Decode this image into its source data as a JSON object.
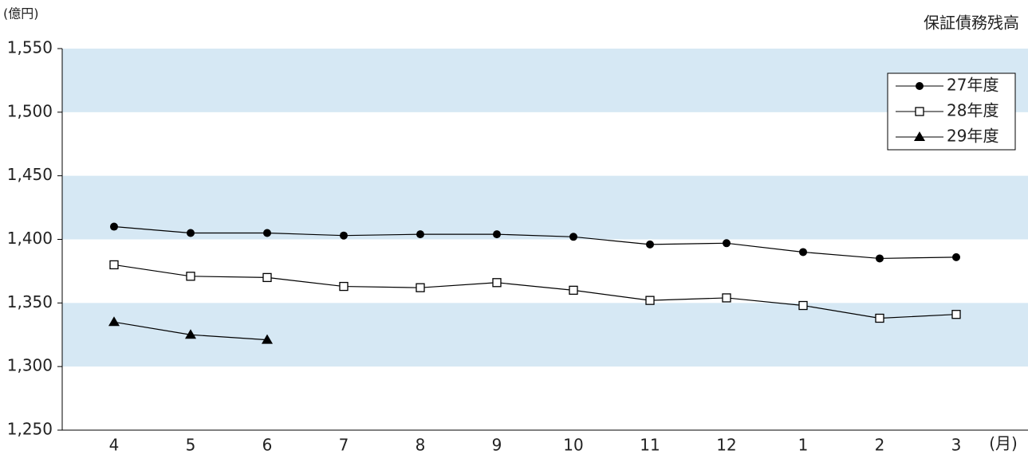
{
  "chart_data": {
    "type": "line",
    "title": "保証債務残高",
    "y_label": "(億円)",
    "x_label": "(月)",
    "categories": [
      "4",
      "5",
      "6",
      "7",
      "8",
      "9",
      "10",
      "11",
      "12",
      "1",
      "2",
      "3"
    ],
    "series": [
      {
        "name": "27年度",
        "color": "#000000",
        "marker": "circle",
        "values": [
          1410,
          1405,
          1405,
          1403,
          1404,
          1404,
          1402,
          1396,
          1397,
          1390,
          1385,
          1386
        ]
      },
      {
        "name": "28年度",
        "color": "#000000",
        "marker": "square",
        "values": [
          1380,
          1371,
          1370,
          1363,
          1362,
          1366,
          1360,
          1352,
          1354,
          1348,
          1338,
          1341
        ]
      },
      {
        "name": "29年度",
        "color": "#000000",
        "marker": "triangle",
        "values": [
          1335,
          1325,
          1321,
          null,
          null,
          null,
          null,
          null,
          null,
          null,
          null,
          null
        ]
      }
    ],
    "ylim": [
      1250,
      1550
    ],
    "yticks": [
      {
        "value": 1250,
        "label": "1,250"
      },
      {
        "value": 1300,
        "label": "1,300"
      },
      {
        "value": 1350,
        "label": "1,350"
      },
      {
        "value": 1400,
        "label": "1,400"
      },
      {
        "value": 1450,
        "label": "1,450"
      },
      {
        "value": 1500,
        "label": "1,500"
      },
      {
        "value": 1550,
        "label": "1,550"
      }
    ],
    "band_color": "#d6e8f4",
    "legend": "upper right"
  }
}
